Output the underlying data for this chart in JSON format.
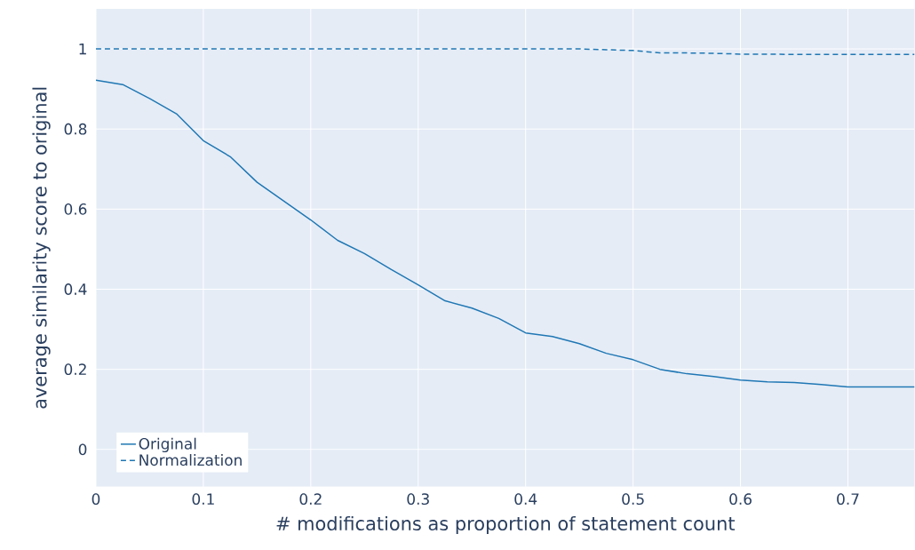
{
  "chart_data": {
    "type": "line",
    "xlabel": "# modifications as proportion of statement count",
    "ylabel": "average similarity score to original",
    "xlim": [
      0,
      0.762
    ],
    "ylim": [
      -0.093,
      1.1
    ],
    "xticks": [
      0,
      0.1,
      0.2,
      0.3,
      0.4,
      0.5,
      0.6,
      0.7
    ],
    "yticks": [
      0,
      0.2,
      0.4,
      0.6,
      0.8,
      1
    ],
    "grid": true,
    "legend": "bottom left",
    "series": [
      {
        "name": "Original",
        "color": "#1f77b4",
        "line_style": "solid",
        "x": [
          0,
          0.025,
          0.05,
          0.075,
          0.1,
          0.125,
          0.15,
          0.175,
          0.2,
          0.225,
          0.25,
          0.275,
          0.3,
          0.325,
          0.35,
          0.375,
          0.4,
          0.425,
          0.45,
          0.475,
          0.5,
          0.525,
          0.55,
          0.575,
          0.6,
          0.625,
          0.65,
          0.675,
          0.7,
          0.725,
          0.75,
          0.762
        ],
        "values": [
          0.922,
          0.911,
          0.876,
          0.838,
          0.771,
          0.731,
          0.667,
          0.62,
          0.573,
          0.522,
          0.489,
          0.449,
          0.411,
          0.371,
          0.353,
          0.327,
          0.291,
          0.282,
          0.264,
          0.24,
          0.224,
          0.2,
          0.189,
          0.182,
          0.173,
          0.169,
          0.167,
          0.162,
          0.156,
          0.156,
          0.156,
          0.156
        ]
      },
      {
        "name": "Normalization",
        "color": "#1f77b4",
        "line_style": "dashed",
        "x": [
          0,
          0.025,
          0.05,
          0.075,
          0.1,
          0.125,
          0.15,
          0.175,
          0.2,
          0.225,
          0.25,
          0.275,
          0.3,
          0.325,
          0.35,
          0.375,
          0.4,
          0.425,
          0.45,
          0.475,
          0.5,
          0.525,
          0.55,
          0.575,
          0.6,
          0.625,
          0.65,
          0.675,
          0.7,
          0.725,
          0.75,
          0.762
        ],
        "values": [
          1,
          1,
          1,
          1,
          1,
          1,
          1,
          1,
          1,
          1,
          1,
          1,
          1,
          1,
          1,
          1,
          1,
          1,
          1,
          0.998,
          0.996,
          0.99,
          0.99,
          0.989,
          0.987,
          0.987,
          0.986,
          0.986,
          0.986,
          0.986,
          0.986,
          0.986
        ]
      }
    ]
  }
}
